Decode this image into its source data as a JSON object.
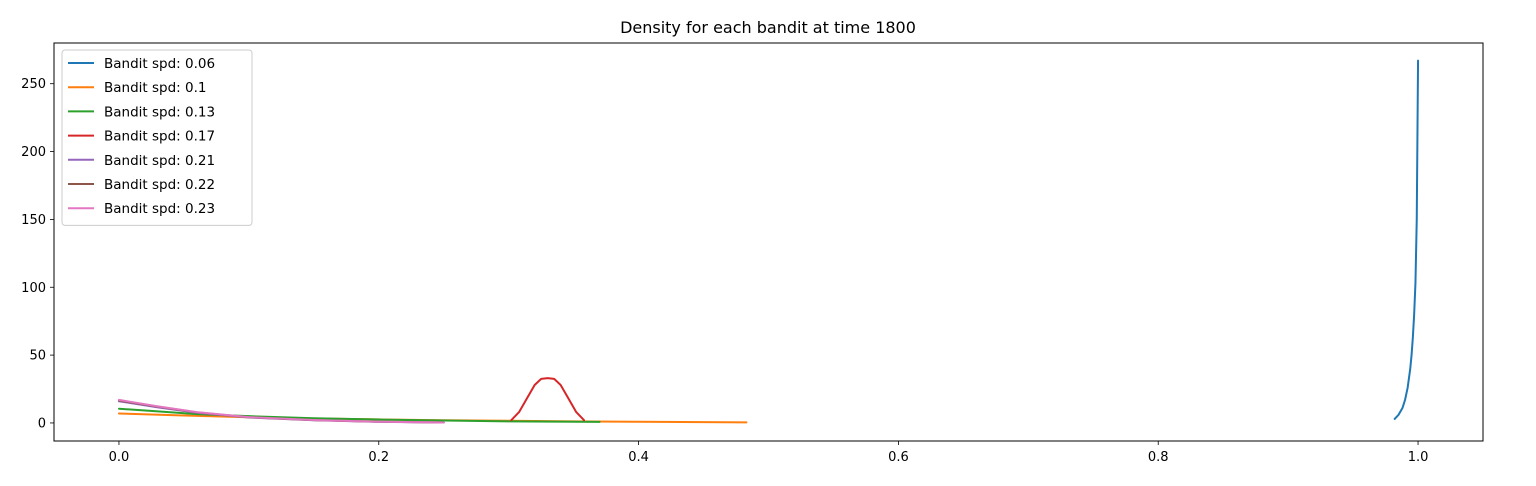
{
  "chart_data": {
    "type": "line",
    "title": "Density for each bandit at time 1800",
    "xlabel": "",
    "ylabel": "",
    "xlim": [
      -0.05,
      1.05
    ],
    "ylim": [
      -13.3,
      280
    ],
    "x_ticks": [
      0.0,
      0.2,
      0.4,
      0.6,
      0.8,
      1.0
    ],
    "x_tick_labels": [
      "0.0",
      "0.2",
      "0.4",
      "0.6",
      "0.8",
      "1.0"
    ],
    "y_ticks": [
      0,
      50,
      100,
      150,
      200,
      250
    ],
    "y_tick_labels": [
      "0",
      "50",
      "100",
      "150",
      "200",
      "250"
    ],
    "grid": false,
    "legend_position": "top-left",
    "series": [
      {
        "name": "Bandit spd: 0.06",
        "color": "#1f77b4",
        "x": [
          0.982,
          0.985,
          0.988,
          0.99,
          0.992,
          0.994,
          0.995,
          0.996,
          0.997,
          0.998,
          0.999,
          1.0
        ],
        "y": [
          3,
          6,
          11,
          17,
          26,
          40,
          50,
          63,
          80,
          103,
          150,
          267
        ]
      },
      {
        "name": "Bandit spd: 0.1",
        "color": "#ff7f0e",
        "x": [
          0.0,
          0.05,
          0.1,
          0.15,
          0.2,
          0.25,
          0.3,
          0.35,
          0.4,
          0.45,
          0.483
        ],
        "y": [
          7,
          5.5,
          4.2,
          3.3,
          2.6,
          2.0,
          1.6,
          1.2,
          0.9,
          0.6,
          0.4
        ]
      },
      {
        "name": "Bandit spd: 0.13",
        "color": "#2ca02c",
        "x": [
          0.0,
          0.03,
          0.06,
          0.1,
          0.15,
          0.2,
          0.25,
          0.3,
          0.37
        ],
        "y": [
          10.5,
          8.5,
          6.5,
          5,
          3.5,
          2.5,
          1.8,
          1.2,
          0.8
        ]
      },
      {
        "name": "Bandit spd: 0.17",
        "color": "#d62728",
        "x": [
          0.302,
          0.308,
          0.314,
          0.32,
          0.325,
          0.33,
          0.335,
          0.34,
          0.346,
          0.352,
          0.358
        ],
        "y": [
          2,
          8,
          18,
          28,
          32.5,
          33,
          32.5,
          28,
          18,
          8,
          2
        ]
      },
      {
        "name": "Bandit spd: 0.21",
        "color": "#9467bd",
        "x": [
          0.0,
          0.03,
          0.06,
          0.1,
          0.15,
          0.2,
          0.25
        ],
        "y": [
          16,
          11.5,
          7.5,
          4,
          2,
          0.8,
          0.3
        ]
      },
      {
        "name": "Bandit spd: 0.22",
        "color": "#8c564b",
        "x": [
          0.0,
          0.03,
          0.06,
          0.1,
          0.15,
          0.2,
          0.25
        ],
        "y": [
          16.5,
          12,
          7.8,
          4.2,
          2.1,
          0.9,
          0.3
        ]
      },
      {
        "name": "Bandit spd: 0.23",
        "color": "#e377c2",
        "x": [
          0.0,
          0.03,
          0.06,
          0.1,
          0.15,
          0.2,
          0.25
        ],
        "y": [
          17,
          12.2,
          8,
          4.3,
          2.2,
          0.9,
          0.3
        ]
      }
    ]
  }
}
